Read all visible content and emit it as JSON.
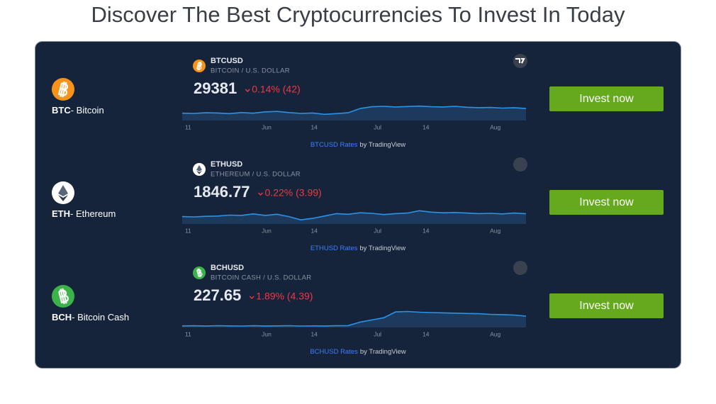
{
  "title": "Discover The Best Cryptocurrencies To Invest In Today",
  "rows": [
    {
      "coin_code": "BTC",
      "coin_name": "- Bitcoin",
      "symbol": "BTCUSD",
      "description": "BITCOIN / U.S. DOLLAR",
      "price": "29381",
      "change": "0.14% (42)",
      "sparkline": {
        "values": [
          27300,
          27200,
          27500,
          27400,
          27100,
          27600,
          27300,
          27900,
          28100,
          27600,
          27200,
          27400,
          26800,
          27100,
          27500,
          29400,
          30200,
          30400,
          30100,
          30300,
          30500,
          30200,
          30100,
          30400,
          30000,
          29800,
          29900,
          29600,
          29800,
          29400
        ],
        "ylim": [
          24000,
          32000
        ]
      },
      "x_labels": [
        "11",
        "Jun",
        "14",
        "Jul",
        "14",
        "Aug"
      ],
      "attribution_link": "BTCUSD Rates",
      "attribution": "by TradingView",
      "button": "Invest now"
    },
    {
      "coin_code": "ETH",
      "coin_name": "- Ethereum",
      "symbol": "ETHUSD",
      "description": "ETHEREUM / U.S. DOLLAR",
      "price": "1846.77",
      "change": "0.22% (3.99)",
      "sparkline": {
        "values": [
          1750,
          1740,
          1760,
          1770,
          1800,
          1790,
          1840,
          1790,
          1830,
          1750,
          1640,
          1690,
          1770,
          1850,
          1830,
          1880,
          1860,
          1820,
          1850,
          1870,
          1950,
          1900,
          1880,
          1890,
          1870,
          1850,
          1860,
          1840,
          1870,
          1846.77
        ],
        "ylim": [
          1500,
          2100
        ]
      },
      "x_labels": [
        "11",
        "Jun",
        "14",
        "Jul",
        "14",
        "Aug"
      ],
      "attribution_link": "ETHUSD Rates",
      "attribution": "by TradingView",
      "button": "Invest now"
    },
    {
      "coin_code": "BCH",
      "coin_name": "- Bitcoin Cash",
      "symbol": "BCHUSD",
      "description": "BITCOIN CASH / U.S. DOLLAR",
      "price": "227.65",
      "change": "1.89% (4.39)",
      "sparkline": {
        "values": [
          118,
          119,
          117,
          120,
          118,
          116,
          119,
          117,
          118,
          120,
          116,
          118,
          117,
          119,
          121,
          160,
          185,
          210,
          275,
          280,
          272,
          268,
          265,
          262,
          258,
          255,
          248,
          245,
          240,
          227.65
        ],
        "ylim": [
          100,
          300
        ]
      },
      "x_labels": [
        "11",
        "Jun",
        "14",
        "Jul",
        "14",
        "Aug"
      ],
      "attribution_link": "BCHUSD Rates",
      "attribution": "by TradingView",
      "button": "Invest now"
    }
  ]
}
